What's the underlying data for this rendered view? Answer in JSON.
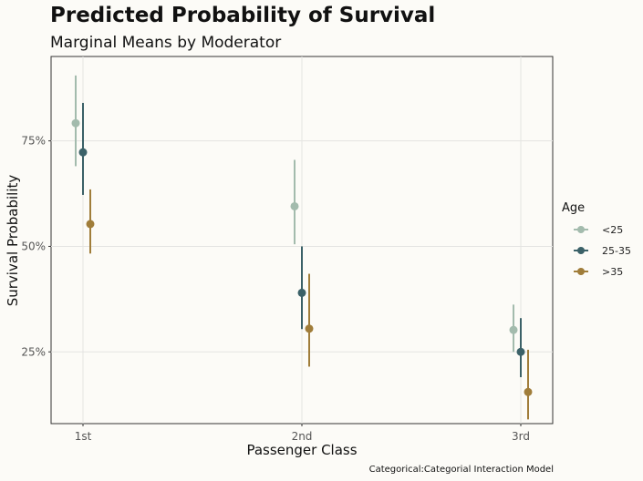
{
  "chart_data": {
    "type": "scatter",
    "title": "Predicted Probability of Survival",
    "subtitle": "Marginal Means by Moderator",
    "xlabel": "Passenger Class",
    "ylabel": "Survival Probability",
    "caption": "Categorical:Categorial Interaction Model",
    "categories": [
      "1st",
      "2nd",
      "3rd"
    ],
    "ylim": [
      0.08,
      0.95
    ],
    "yticks": [
      0.25,
      0.5,
      0.75
    ],
    "ytick_labels": [
      "25%",
      "50%",
      "75%"
    ],
    "grid": true,
    "legend": {
      "title": "Age",
      "position": "right"
    },
    "series": [
      {
        "name": "<25",
        "color": "#a3bbad",
        "values": [
          0.792,
          0.595,
          0.302
        ],
        "lower": [
          0.69,
          0.505,
          0.25
        ],
        "upper": [
          0.905,
          0.705,
          0.362
        ]
      },
      {
        "name": "25-35",
        "color": "#3b6168",
        "values": [
          0.723,
          0.39,
          0.25
        ],
        "lower": [
          0.622,
          0.304,
          0.19
        ],
        "upper": [
          0.84,
          0.5,
          0.33
        ]
      },
      {
        "name": ">35",
        "color": "#a07d3a",
        "values": [
          0.553,
          0.305,
          0.155
        ],
        "lower": [
          0.483,
          0.215,
          0.09
        ],
        "upper": [
          0.635,
          0.435,
          0.255
        ]
      }
    ]
  }
}
